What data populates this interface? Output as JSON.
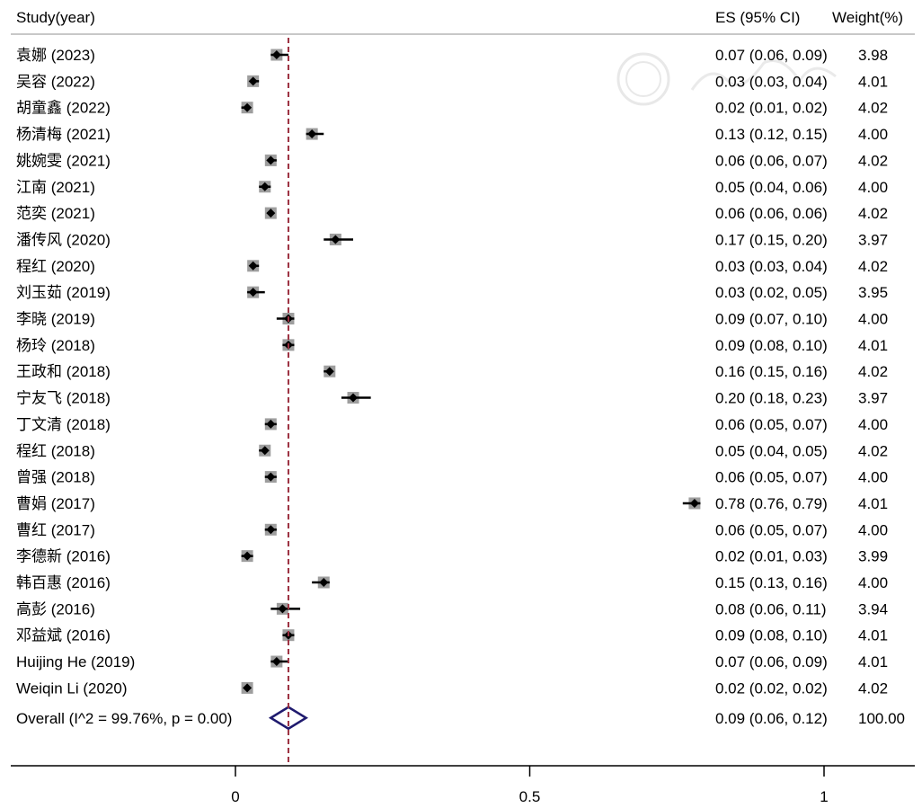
{
  "chart_data": {
    "type": "forest",
    "header": {
      "study": "Study(year)",
      "es": "ES (95% CI)",
      "weight": "Weight(%)"
    },
    "xticks": [
      0,
      0.5,
      1
    ],
    "xtick_labels": [
      "0",
      "0.5",
      "1"
    ],
    "xlim": [
      -0.38,
      1.15
    ],
    "reference_line": 0.09,
    "studies": [
      {
        "label": "袁娜 (2023)",
        "es": 0.07,
        "lo": 0.06,
        "hi": 0.09,
        "es_text": "0.07 (0.06, 0.09)",
        "weight": "3.98"
      },
      {
        "label": "吴容 (2022)",
        "es": 0.03,
        "lo": 0.03,
        "hi": 0.04,
        "es_text": "0.03 (0.03, 0.04)",
        "weight": "4.01"
      },
      {
        "label": "胡童鑫 (2022)",
        "es": 0.02,
        "lo": 0.01,
        "hi": 0.02,
        "es_text": "0.02 (0.01, 0.02)",
        "weight": "4.02"
      },
      {
        "label": "杨清梅 (2021)",
        "es": 0.13,
        "lo": 0.12,
        "hi": 0.15,
        "es_text": "0.13 (0.12, 0.15)",
        "weight": "4.00"
      },
      {
        "label": "姚婉雯 (2021)",
        "es": 0.06,
        "lo": 0.06,
        "hi": 0.07,
        "es_text": "0.06 (0.06, 0.07)",
        "weight": "4.02"
      },
      {
        "label": "江南 (2021)",
        "es": 0.05,
        "lo": 0.04,
        "hi": 0.06,
        "es_text": "0.05 (0.04, 0.06)",
        "weight": "4.00"
      },
      {
        "label": "范奕 (2021)",
        "es": 0.06,
        "lo": 0.06,
        "hi": 0.06,
        "es_text": "0.06 (0.06, 0.06)",
        "weight": "4.02"
      },
      {
        "label": "潘传风 (2020)",
        "es": 0.17,
        "lo": 0.15,
        "hi": 0.2,
        "es_text": "0.17 (0.15, 0.20)",
        "weight": "3.97"
      },
      {
        "label": "程红 (2020)",
        "es": 0.03,
        "lo": 0.03,
        "hi": 0.04,
        "es_text": "0.03 (0.03, 0.04)",
        "weight": "4.02"
      },
      {
        "label": "刘玉茹 (2019)",
        "es": 0.03,
        "lo": 0.02,
        "hi": 0.05,
        "es_text": "0.03 (0.02, 0.05)",
        "weight": "3.95"
      },
      {
        "label": "李晓 (2019)",
        "es": 0.09,
        "lo": 0.07,
        "hi": 0.1,
        "es_text": "0.09 (0.07, 0.10)",
        "weight": "4.00"
      },
      {
        "label": "杨玲 (2018)",
        "es": 0.09,
        "lo": 0.08,
        "hi": 0.1,
        "es_text": "0.09 (0.08, 0.10)",
        "weight": "4.01"
      },
      {
        "label": "王政和 (2018)",
        "es": 0.16,
        "lo": 0.15,
        "hi": 0.16,
        "es_text": "0.16 (0.15, 0.16)",
        "weight": "4.02"
      },
      {
        "label": "宁友飞 (2018)",
        "es": 0.2,
        "lo": 0.18,
        "hi": 0.23,
        "es_text": "0.20 (0.18, 0.23)",
        "weight": "3.97"
      },
      {
        "label": "丁文清 (2018)",
        "es": 0.06,
        "lo": 0.05,
        "hi": 0.07,
        "es_text": "0.06 (0.05, 0.07)",
        "weight": "4.00"
      },
      {
        "label": "程红 (2018)",
        "es": 0.05,
        "lo": 0.04,
        "hi": 0.05,
        "es_text": "0.05 (0.04, 0.05)",
        "weight": "4.02"
      },
      {
        "label": "曾强 (2018)",
        "es": 0.06,
        "lo": 0.05,
        "hi": 0.07,
        "es_text": "0.06 (0.05, 0.07)",
        "weight": "4.00"
      },
      {
        "label": "曹娟 (2017)",
        "es": 0.78,
        "lo": 0.76,
        "hi": 0.79,
        "es_text": "0.78 (0.76, 0.79)",
        "weight": "4.01"
      },
      {
        "label": "曹红 (2017)",
        "es": 0.06,
        "lo": 0.05,
        "hi": 0.07,
        "es_text": "0.06 (0.05, 0.07)",
        "weight": "4.00"
      },
      {
        "label": "李德新 (2016)",
        "es": 0.02,
        "lo": 0.01,
        "hi": 0.03,
        "es_text": "0.02 (0.01, 0.03)",
        "weight": "3.99"
      },
      {
        "label": "韩百惠 (2016)",
        "es": 0.15,
        "lo": 0.13,
        "hi": 0.16,
        "es_text": "0.15 (0.13, 0.16)",
        "weight": "4.00"
      },
      {
        "label": "高彭 (2016)",
        "es": 0.08,
        "lo": 0.06,
        "hi": 0.11,
        "es_text": "0.08 (0.06, 0.11)",
        "weight": "3.94"
      },
      {
        "label": "邓益斌 (2016)",
        "es": 0.09,
        "lo": 0.08,
        "hi": 0.1,
        "es_text": "0.09 (0.08, 0.10)",
        "weight": "4.01"
      },
      {
        "label": "Huijing He  (2019)",
        "es": 0.07,
        "lo": 0.06,
        "hi": 0.09,
        "es_text": "0.07 (0.06, 0.09)",
        "weight": "4.01"
      },
      {
        "label": "Weiqin Li (2020)",
        "es": 0.02,
        "lo": 0.02,
        "hi": 0.02,
        "es_text": "0.02 (0.02, 0.02)",
        "weight": "4.02"
      }
    ],
    "overall": {
      "label": "Overall  (I^2 = 99.76%, p = 0.00)",
      "es": 0.09,
      "lo": 0.06,
      "hi": 0.12,
      "es_text": "0.09 (0.06, 0.12)",
      "weight": "100.00"
    },
    "colors": {
      "text": "#000000",
      "ci_line": "#000000",
      "marker": "#000000",
      "weight_box": "#9e9e9e",
      "reference_line": "#9b2f3f",
      "overall_diamond": "#1f1a6e",
      "header_rule": "#c8c8c8",
      "watermark": "#d9d9d9"
    }
  }
}
